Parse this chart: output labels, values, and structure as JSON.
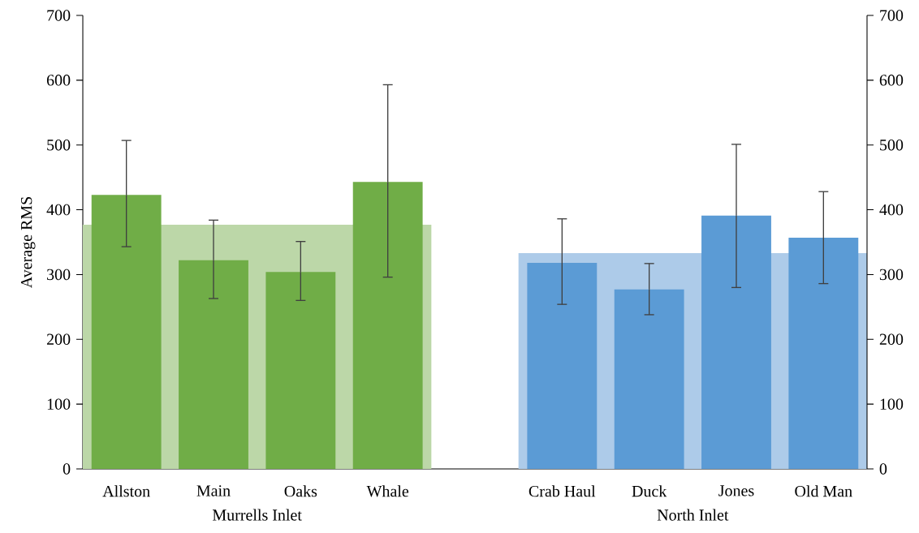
{
  "chart_data": {
    "type": "bar",
    "ylabel": "Average RMS",
    "categories": [
      "Allston",
      "Main",
      "Oaks",
      "Whale",
      null,
      "Crab Haul",
      "Duck",
      "Jones",
      "Old Man"
    ],
    "series": [
      {
        "color": "#70ad47",
        "values": [
          423,
          322,
          304,
          443,
          null,
          null,
          null,
          null,
          null
        ],
        "errors": [
          [
            343,
            507
          ],
          [
            263,
            384
          ],
          [
            260,
            351
          ],
          [
            296,
            593
          ],
          null,
          null,
          null,
          null,
          null
        ]
      },
      {
        "color": "#5b9bd5",
        "values": [
          null,
          null,
          null,
          null,
          null,
          318,
          277,
          391,
          357
        ],
        "errors": [
          null,
          null,
          null,
          null,
          null,
          [
            254,
            386
          ],
          [
            238,
            317
          ],
          [
            280,
            501
          ],
          [
            286,
            428
          ]
        ]
      }
    ],
    "ylim": [
      0,
      700
    ],
    "yticks": [
      0,
      100,
      200,
      300,
      400,
      500,
      600,
      700
    ],
    "y2lim": [
      0,
      700
    ],
    "y2ticks": [
      0,
      100,
      200,
      300,
      400,
      500,
      600,
      700
    ],
    "bands": [
      {
        "axis": "y",
        "from": 0,
        "to": 377,
        "color": "#bcd7a8"
      },
      {
        "axis": "y",
        "from": 0,
        "to": 333,
        "color": "#adcbe9"
      }
    ],
    "annotations": [
      "Murrells Inlet",
      "North Inlet"
    ]
  }
}
